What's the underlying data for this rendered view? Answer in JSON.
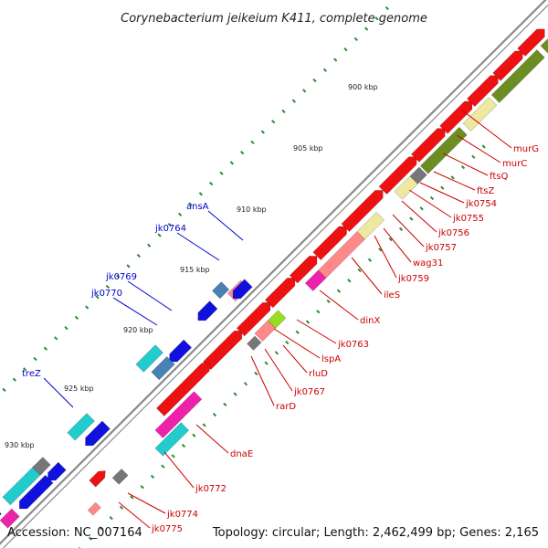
{
  "title": "Corynebacterium jeikeium K411, complete genome",
  "footer": {
    "accession": "Accession: NC_007164",
    "summary": "Topology: circular; Length: 2,462,499 bp; Genes: 2,165"
  },
  "colors": {
    "backbone": "#8a8a8a",
    "tick": "#2e8b2e",
    "label_red": "#cc0000",
    "label_blue": "#0000cc",
    "cds_red": "#ee1111",
    "cds_blue": "#1111dd",
    "cds_cyan": "#22cccc",
    "cds_magenta": "#ee22aa",
    "cds_olive": "#6b8e23",
    "cds_khaki": "#eee8a0",
    "cds_gray": "#777777",
    "cds_pink": "#ff8888",
    "cds_steel": "#4682b4",
    "cds_lime": "#99dd22"
  },
  "kbp_labels": [
    "900 kbp",
    "905 kbp",
    "910 kbp",
    "915 kbp",
    "920 kbp",
    "925 kbp",
    "930 kbp"
  ],
  "gene_labels_red": [
    "murG",
    "murC",
    "ftsQ",
    "ftsZ",
    "jk0754",
    "jk0755",
    "jk0756",
    "jk0757",
    "wag31",
    "jk0759",
    "ileS",
    "dinX",
    "jk0763",
    "lspA",
    "rluD",
    "jk0767",
    "rarD",
    "dnaE",
    "jk0772",
    "jk0774",
    "jk0775"
  ],
  "gene_labels_blue": [
    "ansA",
    "jk0764",
    "jk0769",
    "jk0770",
    "treZ"
  ]
}
